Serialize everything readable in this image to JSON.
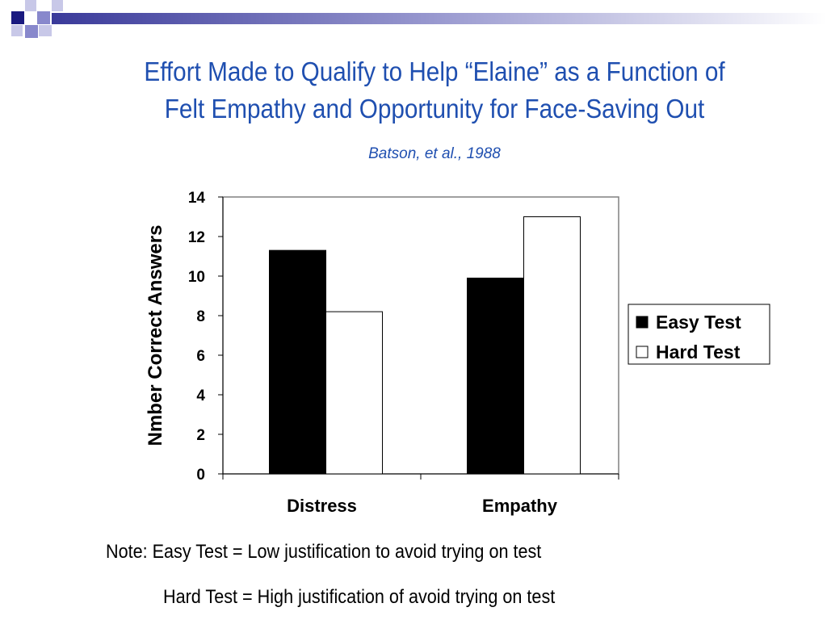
{
  "slide": {
    "title_line1": "Effort Made to Qualify to Help “Elaine” as a Function of",
    "title_line2": "Felt Empathy and Opportunity for Face-Saving Out",
    "subtitle": "Batson, et al., 1988",
    "note_line1": "Note: Easy Test = Low justification to avoid trying on test",
    "note_line2": "Hard Test = High justification of avoid trying on test",
    "accent_color": "#1f4fb0",
    "deco_colors": [
      "#1a1a80",
      "#8888cc",
      "#c8c8e8"
    ]
  },
  "chart_data": {
    "type": "bar",
    "title": "",
    "xlabel": "",
    "ylabel": "Nmber Correct Answers",
    "categories": [
      "Distress",
      "Empathy"
    ],
    "series": [
      {
        "name": "Easy Test",
        "values": [
          11.3,
          9.9
        ],
        "color": "#000000"
      },
      {
        "name": "Hard Test",
        "values": [
          8.2,
          13.0
        ],
        "color": "#ffffff"
      }
    ],
    "ylim": [
      0,
      14
    ],
    "yticks": [
      0,
      2,
      4,
      6,
      8,
      10,
      12,
      14
    ],
    "legend_position": "right",
    "grid": false
  }
}
